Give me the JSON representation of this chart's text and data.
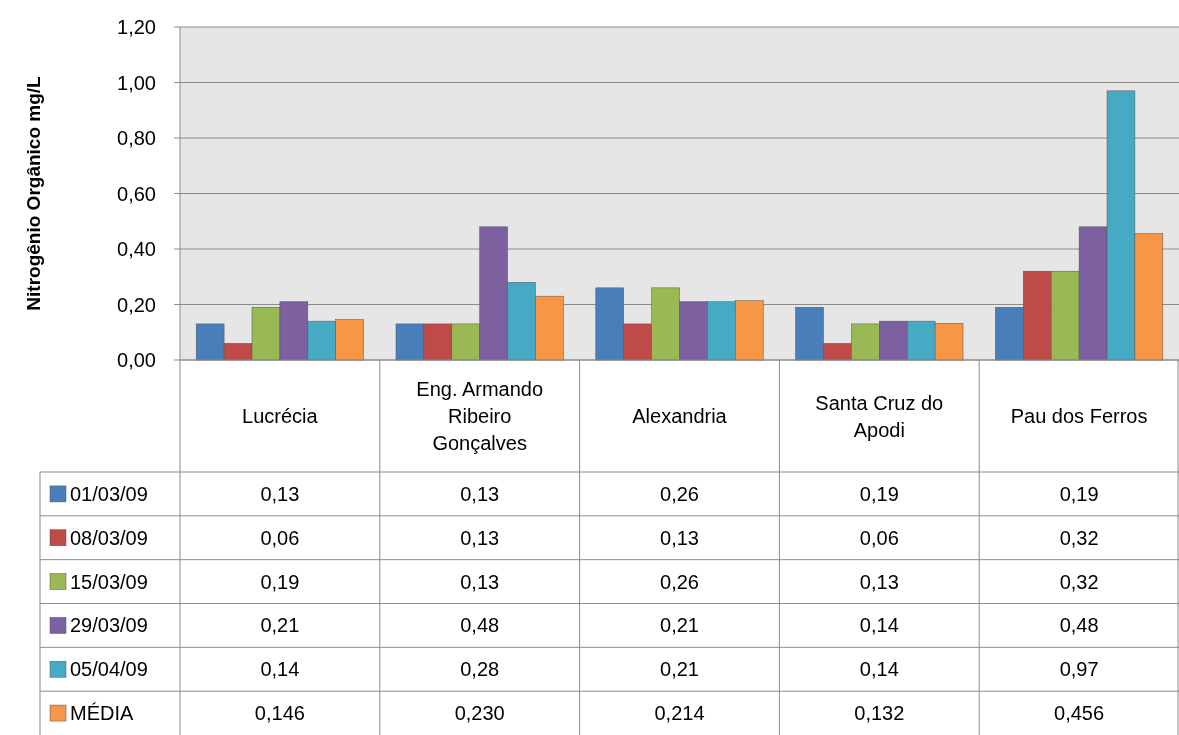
{
  "chart_data": {
    "type": "bar",
    "ylabel": "Nitrogênio Orgânico  mg/L",
    "categories": [
      "Lucrécia",
      "Eng. Armando Ribeiro Gonçalves",
      "Alexandria",
      "Santa Cruz do Apodi",
      "Pau dos Ferros"
    ],
    "series": [
      {
        "name": "01/03/09",
        "color": "#4a7ebb",
        "values": [
          0.13,
          0.13,
          0.26,
          0.19,
          0.19
        ],
        "value_labels": [
          "0,13",
          "0,13",
          "0,26",
          "0,19",
          "0,19"
        ]
      },
      {
        "name": "08/03/09",
        "color": "#be4b48",
        "values": [
          0.06,
          0.13,
          0.13,
          0.06,
          0.32
        ],
        "value_labels": [
          "0,06",
          "0,13",
          "0,13",
          "0,06",
          "0,32"
        ]
      },
      {
        "name": "15/03/09",
        "color": "#98b954",
        "values": [
          0.19,
          0.13,
          0.26,
          0.13,
          0.32
        ],
        "value_labels": [
          "0,19",
          "0,13",
          "0,26",
          "0,13",
          "0,32"
        ]
      },
      {
        "name": "29/03/09",
        "color": "#7d60a0",
        "values": [
          0.21,
          0.48,
          0.21,
          0.14,
          0.48
        ],
        "value_labels": [
          "0,21",
          "0,48",
          "0,21",
          "0,14",
          "0,48"
        ]
      },
      {
        "name": "05/04/09",
        "color": "#46aac5",
        "values": [
          0.14,
          0.28,
          0.21,
          0.14,
          0.97
        ],
        "value_labels": [
          "0,14",
          "0,28",
          "0,21",
          "0,14",
          "0,97"
        ]
      },
      {
        "name": "MÉDIA",
        "color": "#f79646",
        "values": [
          0.146,
          0.23,
          0.214,
          0.132,
          0.456
        ],
        "value_labels": [
          "0,146",
          "0,230",
          "0,214",
          "0,132",
          "0,456"
        ]
      }
    ],
    "ylim": [
      0,
      1.2
    ],
    "yticks": [
      {
        "value": 0,
        "label": "0,00"
      },
      {
        "value": 0.2,
        "label": "0,20"
      },
      {
        "value": 0.4,
        "label": "0,40"
      },
      {
        "value": 0.6,
        "label": "0,60"
      },
      {
        "value": 0.8,
        "label": "0,80"
      },
      {
        "value": 1.0,
        "label": "1,00"
      },
      {
        "value": 1.2,
        "label": "1,20"
      }
    ],
    "grid": "y",
    "legend": "bottom"
  }
}
